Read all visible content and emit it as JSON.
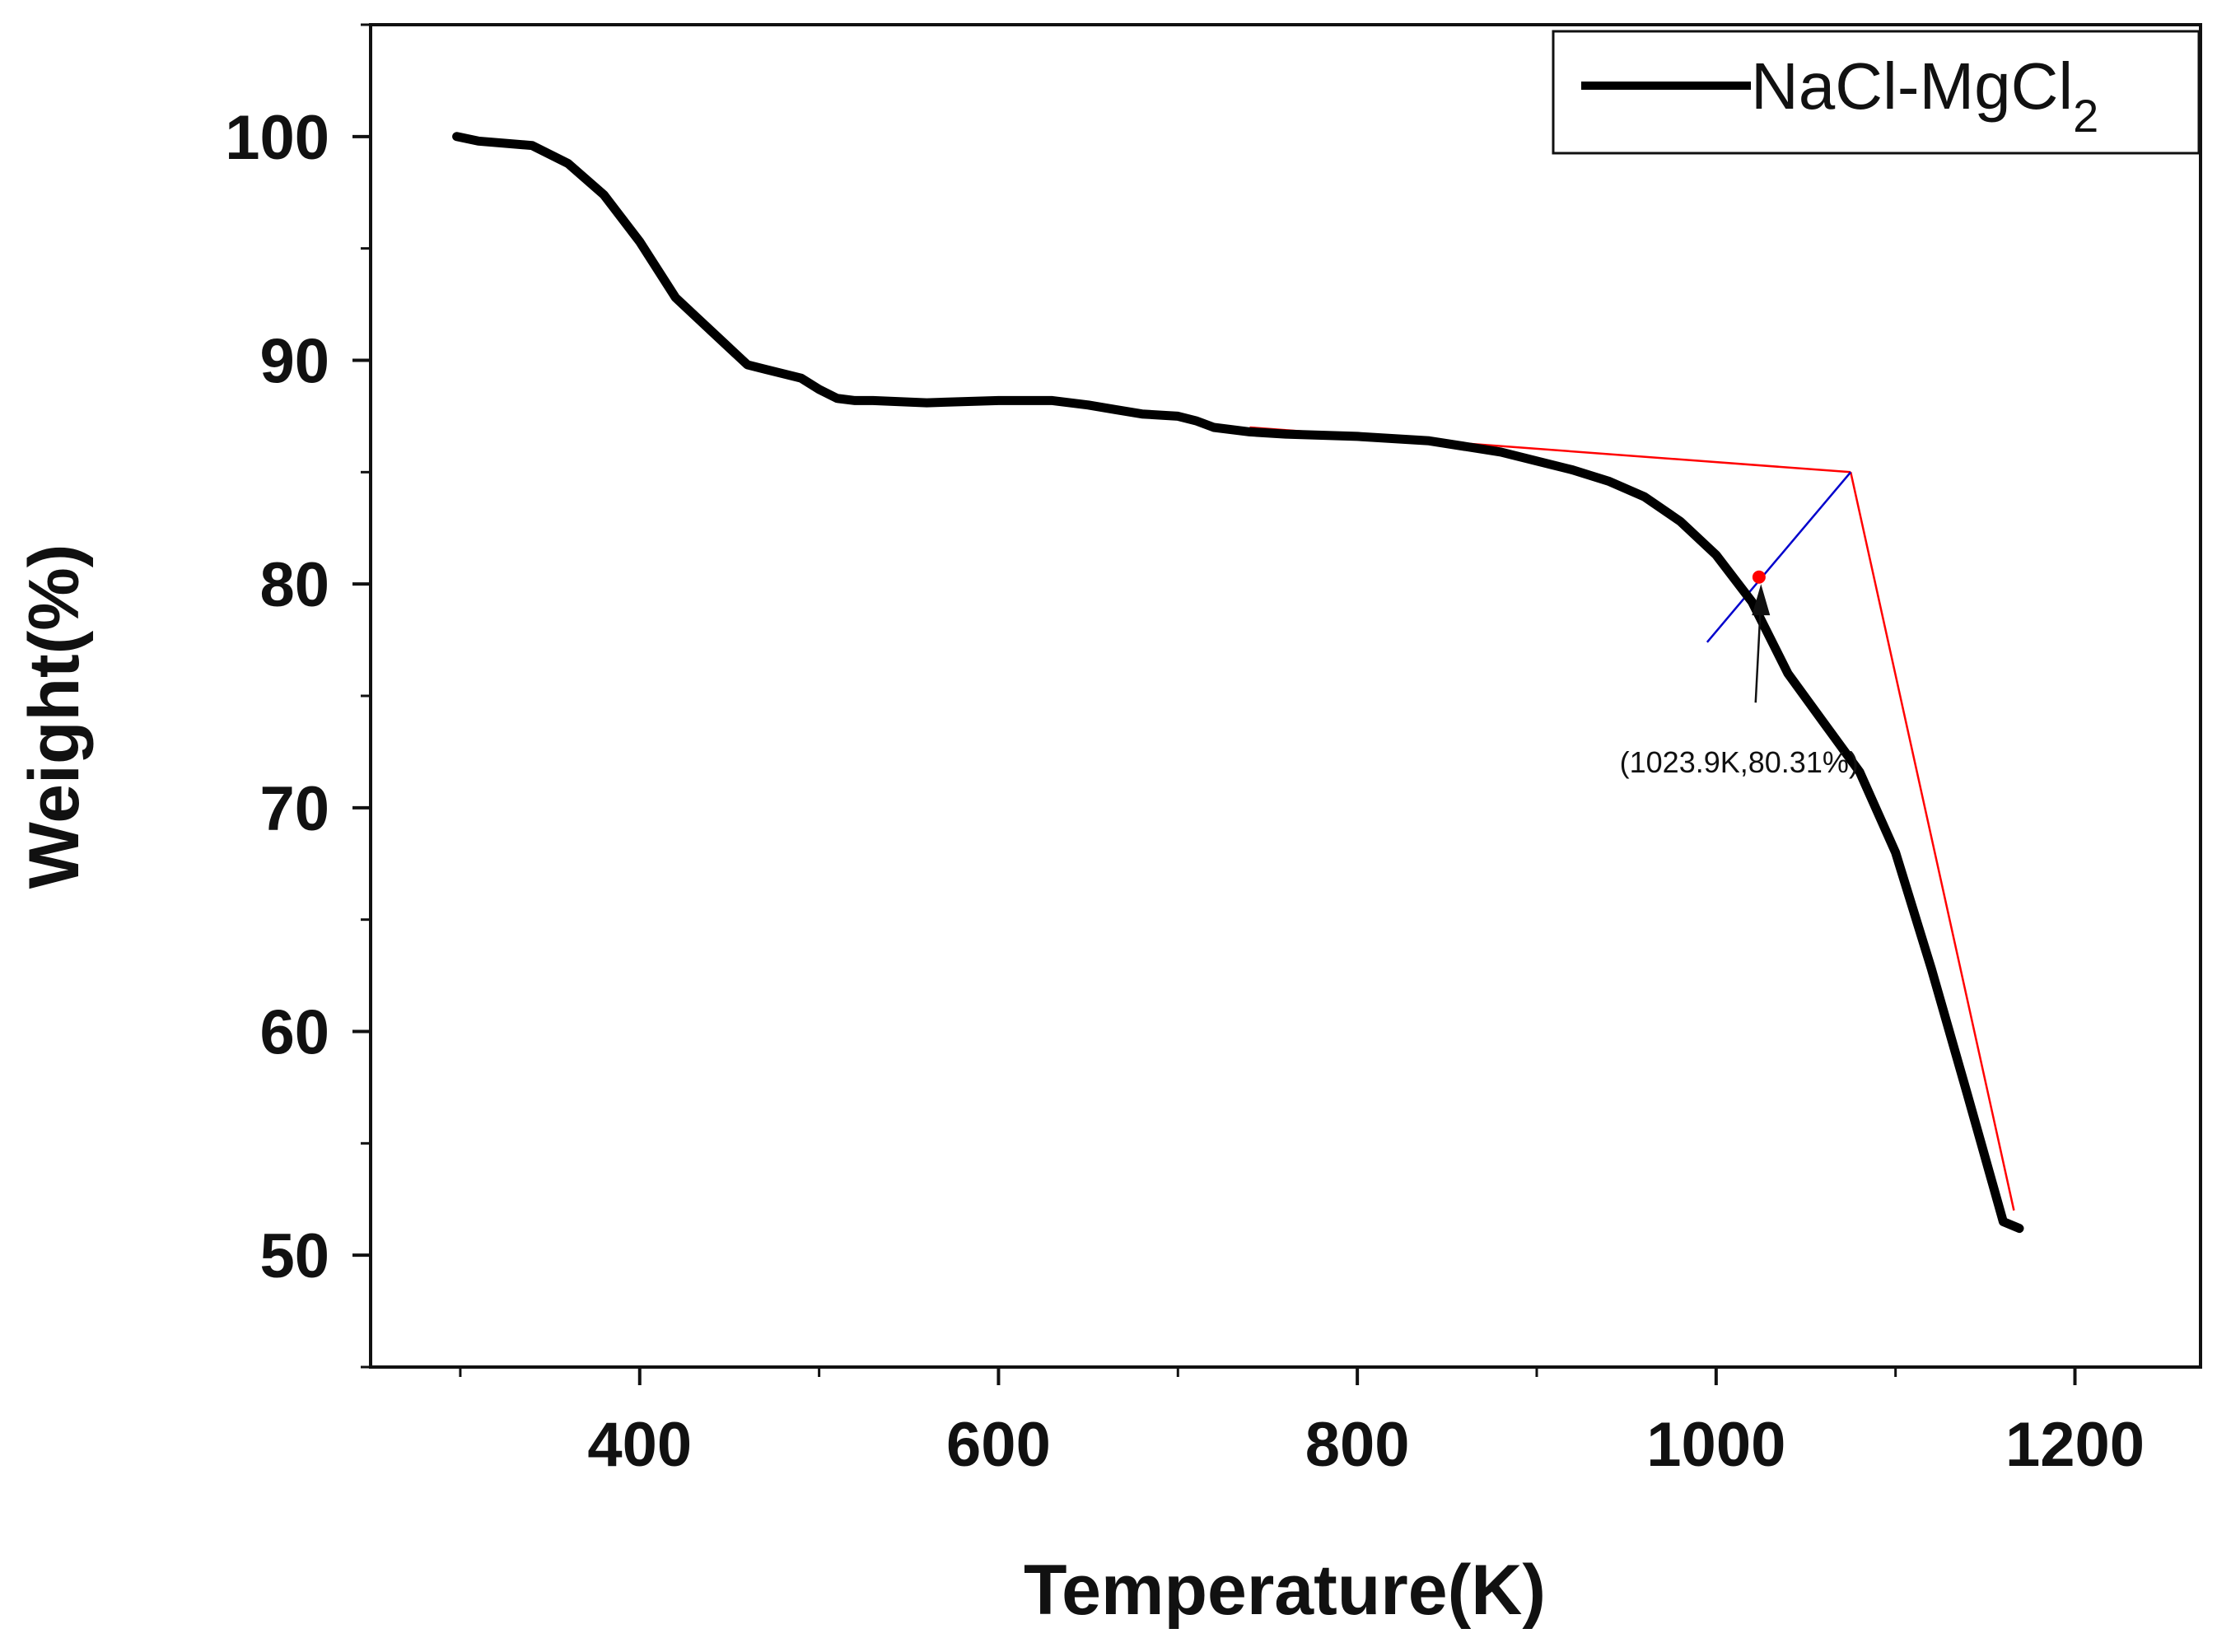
{
  "chart_data": {
    "type": "line",
    "title": "",
    "xlabel": "Temperature(K)",
    "ylabel": "Weight(%)",
    "xlim": [
      250,
      1270
    ],
    "ylim": [
      45,
      105
    ],
    "x_ticks": [
      400,
      600,
      800,
      1000,
      1200
    ],
    "x_tick_labels": [
      "400",
      "600",
      "800",
      "1000",
      "1200"
    ],
    "y_ticks": [
      50,
      60,
      70,
      80,
      90,
      100
    ],
    "y_tick_labels": [
      "50",
      "60",
      "70",
      "80",
      "90",
      "100"
    ],
    "grid": false,
    "legend": {
      "position": "top-right",
      "entries": [
        {
          "label": "NaCl-MgCl",
          "subscript": "2"
        }
      ]
    },
    "series": [
      {
        "name": "NaCl-MgCl2",
        "color": "#000000",
        "x": [
          298,
          310,
          340,
          360,
          380,
          400,
          420,
          440,
          460,
          470,
          490,
          500,
          510,
          520,
          530,
          560,
          600,
          630,
          650,
          665,
          680,
          700,
          710,
          720,
          740,
          760,
          800,
          840,
          880,
          900,
          920,
          940,
          960,
          980,
          1000,
          1020,
          1040,
          1060,
          1080,
          1100,
          1120,
          1140,
          1160,
          1169
        ],
        "y": [
          100,
          99.8,
          99.6,
          98.8,
          97.4,
          95.3,
          92.8,
          91.3,
          89.8,
          89.6,
          89.2,
          88.7,
          88.3,
          88.2,
          88.2,
          88.1,
          88.2,
          88.2,
          88.0,
          87.8,
          87.6,
          87.5,
          87.3,
          87.0,
          86.8,
          86.7,
          86.6,
          86.4,
          85.9,
          85.5,
          85.1,
          84.6,
          83.9,
          82.8,
          81.3,
          79.2,
          76.0,
          73.8,
          71.6,
          68.0,
          62.8,
          57.2,
          51.5,
          51.2
        ]
      }
    ],
    "annotations": [
      {
        "label": "(1023.9K,80.31%)",
        "point": {
          "x": 1023.9,
          "y": 80.31,
          "color": "#ff0000"
        },
        "arrow_tail": {
          "x": 1022,
          "y": 74.7
        },
        "arrow_head": {
          "x": 1025,
          "y": 80.0
        }
      }
    ],
    "tangent_lines": [
      {
        "name": "onset-baseline-tangent",
        "color": "#ff0000",
        "points": [
          [
            740,
            87.0
          ],
          [
            1075,
            85.0
          ]
        ]
      },
      {
        "name": "onset-slope-tangent",
        "color": "#ff0000",
        "points": [
          [
            1075,
            85.0
          ],
          [
            1166,
            52.0
          ]
        ]
      },
      {
        "name": "onset-bisector",
        "color": "#0000cc",
        "points": [
          [
            995,
            77.4
          ],
          [
            1075,
            85.0
          ]
        ]
      }
    ]
  }
}
